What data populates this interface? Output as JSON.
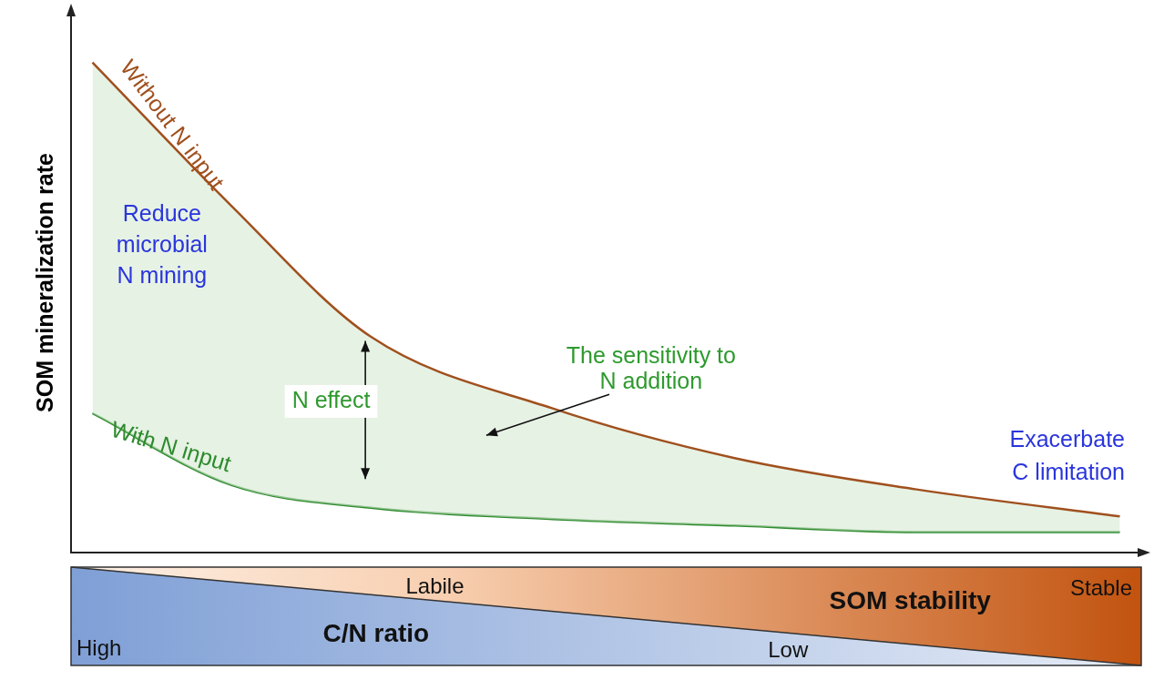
{
  "chart_data": {
    "type": "line",
    "y_label": "SOM mineralization rate",
    "x": [
      2,
      15,
      28,
      45,
      62,
      79,
      98
    ],
    "series": [
      {
        "name": "Without N input",
        "color": "#a0501e",
        "values": [
          90.8,
          64.2,
          40,
          26.7,
          17.5,
          11.7,
          6.7
        ]
      },
      {
        "name": "With N input",
        "color": "#2e8b2e",
        "values": [
          25.8,
          12.5,
          8.3,
          6.2,
          5,
          3.8,
          3.8
        ]
      }
    ],
    "xlim": [
      0,
      100
    ],
    "ylim": [
      0,
      100
    ],
    "tick_labels": false,
    "grid": false,
    "legend": "none",
    "annotations": [
      [
        "Reduce",
        "microbial",
        "N mining"
      ],
      [
        "N effect"
      ],
      [
        "The sensitivity to",
        "N addition"
      ],
      [
        "Exacerbate",
        "C limitation"
      ]
    ],
    "bottom_bar": {
      "top_title": "SOM stability",
      "top_start": "Labile",
      "top_end": "Stable",
      "bottom_title": "C/N ratio",
      "bottom_start": "High",
      "bottom_end": "Low"
    }
  }
}
